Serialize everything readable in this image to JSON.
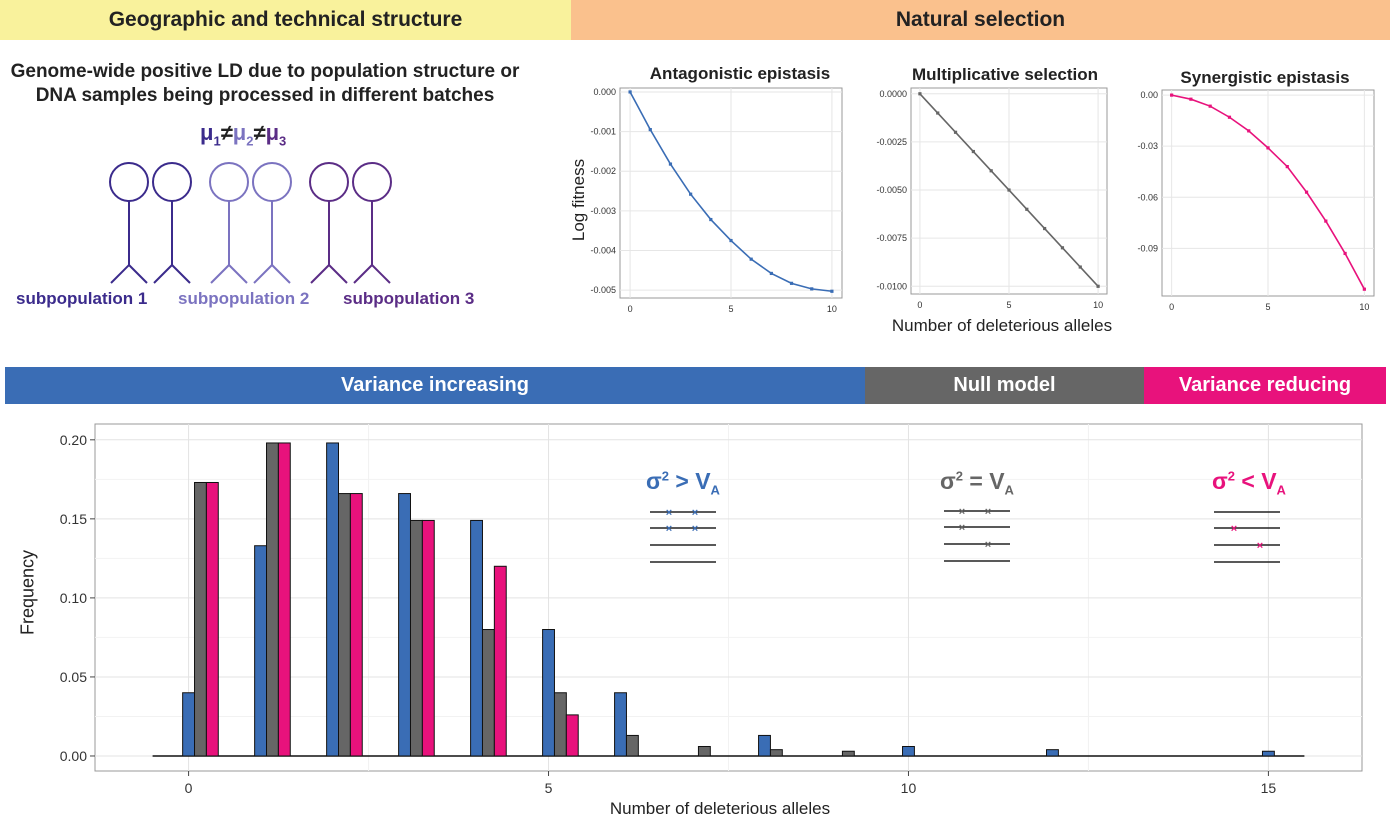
{
  "headers": {
    "geographic": "Geographic and technical structure",
    "natural_selection": "Natural selection",
    "variance_increasing": "Variance increasing",
    "null_model": "Null model",
    "variance_reducing": "Variance reducing"
  },
  "colors": {
    "blue": "#3a6db5",
    "grey": "#666666",
    "pink": "#e8127c",
    "yellow": "#f9f29c",
    "orange": "#fac18d",
    "sub1": "#3b2b8c",
    "sub2": "#7b73c0",
    "sub3": "#5b2d86"
  },
  "structure": {
    "ld_text_line1": "Genome-wide positive LD due to population structure or",
    "ld_text_line2": "DNA samples being processed in different batches",
    "mu1": "μ",
    "sub1": "1",
    "neq1": "≠",
    "mu2": "μ",
    "sub2": "2",
    "neq2": "≠",
    "mu3": "μ",
    "sub3": "3",
    "subpop_labels": [
      "subpopulation 1",
      "subpopulation 2",
      "subpopulation 3"
    ]
  },
  "chart_data": [
    {
      "type": "line",
      "title": "Antagonistic epistasis",
      "ylabel": "Log fitness",
      "color": "#3a6db5",
      "x": [
        0,
        1,
        2,
        3,
        4,
        5,
        6,
        7,
        8,
        9,
        10
      ],
      "y": [
        0,
        -0.00095,
        -0.00182,
        -0.00258,
        -0.00322,
        -0.00375,
        -0.00422,
        -0.00458,
        -0.00483,
        -0.00497,
        -0.00503
      ],
      "ylim": [
        -0.0052,
        0.0001
      ],
      "xticks": [
        "0",
        "5",
        "10"
      ],
      "yticks": [
        {
          "v": 0,
          "label": "0.000"
        },
        {
          "v": -0.001,
          "label": "-0.001"
        },
        {
          "v": -0.002,
          "label": "-0.002"
        },
        {
          "v": -0.003,
          "label": "-0.003"
        },
        {
          "v": -0.004,
          "label": "-0.004"
        },
        {
          "v": -0.005,
          "label": "-0.005"
        }
      ]
    },
    {
      "type": "line",
      "title": "Multiplicative selection",
      "xlabel": "Number of deleterious alleles",
      "color": "#666666",
      "x": [
        0,
        1,
        2,
        3,
        4,
        5,
        6,
        7,
        8,
        9,
        10
      ],
      "y": [
        0,
        -0.001,
        -0.002,
        -0.003,
        -0.004,
        -0.005,
        -0.006,
        -0.007,
        -0.008,
        -0.009,
        -0.01
      ],
      "ylim": [
        -0.0104,
        0.0003
      ],
      "xticks": [
        "0",
        "5",
        "10"
      ],
      "yticks": [
        {
          "v": 0,
          "label": "0.0000"
        },
        {
          "v": -0.0025,
          "label": "-0.0025"
        },
        {
          "v": -0.005,
          "label": "-0.0050"
        },
        {
          "v": -0.0075,
          "label": "-0.0075"
        },
        {
          "v": -0.01,
          "label": "-0.0100"
        }
      ]
    },
    {
      "type": "line",
      "title": "Synergistic epistasis",
      "color": "#e8127c",
      "x": [
        0,
        1,
        2,
        3,
        4,
        5,
        6,
        7,
        8,
        9,
        10
      ],
      "y": [
        0,
        -0.0024,
        -0.0065,
        -0.013,
        -0.021,
        -0.031,
        -0.042,
        -0.057,
        -0.074,
        -0.093,
        -0.114
      ],
      "ylim": [
        -0.118,
        0.003
      ],
      "xticks": [
        "0",
        "5",
        "10"
      ],
      "yticks": [
        {
          "v": 0,
          "label": "0.00"
        },
        {
          "v": -0.03,
          "label": "-0.03"
        },
        {
          "v": -0.06,
          "label": "-0.06"
        },
        {
          "v": -0.09,
          "label": "-0.09"
        }
      ]
    },
    {
      "type": "bar",
      "xlabel": "Number of deleterious alleles",
      "ylabel": "Frequency",
      "xlim": [
        -1.3,
        16.3
      ],
      "ylim": [
        -0.0095,
        0.21
      ],
      "xticks": [
        {
          "v": 0,
          "label": "0"
        },
        {
          "v": 5,
          "label": "5"
        },
        {
          "v": 10,
          "label": "10"
        },
        {
          "v": 15,
          "label": "15"
        }
      ],
      "yticks": [
        {
          "v": 0,
          "label": "0.00"
        },
        {
          "v": 0.05,
          "label": "0.05"
        },
        {
          "v": 0.1,
          "label": "0.10"
        },
        {
          "v": 0.15,
          "label": "0.15"
        },
        {
          "v": 0.2,
          "label": "0.20"
        }
      ],
      "categories": [
        0,
        1,
        2,
        3,
        4,
        5,
        6,
        7,
        8,
        9,
        10,
        11,
        12,
        13,
        14,
        15
      ],
      "series": [
        {
          "color": "#3a6db5",
          "values": [
            0.04,
            0.133,
            0.198,
            0.166,
            0.149,
            0.08,
            0.04,
            0,
            0.013,
            0,
            0.006,
            0,
            0.004,
            0,
            0,
            0.003
          ]
        },
        {
          "color": "#666666",
          "values": [
            0.173,
            0.198,
            0.166,
            0.149,
            0.08,
            0.04,
            0.013,
            0.006,
            0.004,
            0.003,
            0,
            0,
            0,
            0,
            0,
            0
          ]
        },
        {
          "color": "#e8127c",
          "values": [
            0.173,
            0.198,
            0.166,
            0.149,
            0.12,
            0.026,
            0,
            0,
            0,
            0,
            0,
            0,
            0,
            0,
            0,
            0
          ]
        }
      ]
    }
  ],
  "legends": {
    "increasing": {
      "sigma": "σ",
      "sup": "2",
      "op": " > ",
      "V": "V",
      "sub": "A"
    },
    "null": {
      "sigma": "σ",
      "sup": "2",
      "op": " = ",
      "V": "V",
      "sub": "A"
    },
    "reducing": {
      "sigma": "σ",
      "sup": "2",
      "op": " < ",
      "V": "V",
      "sub": "A"
    }
  }
}
